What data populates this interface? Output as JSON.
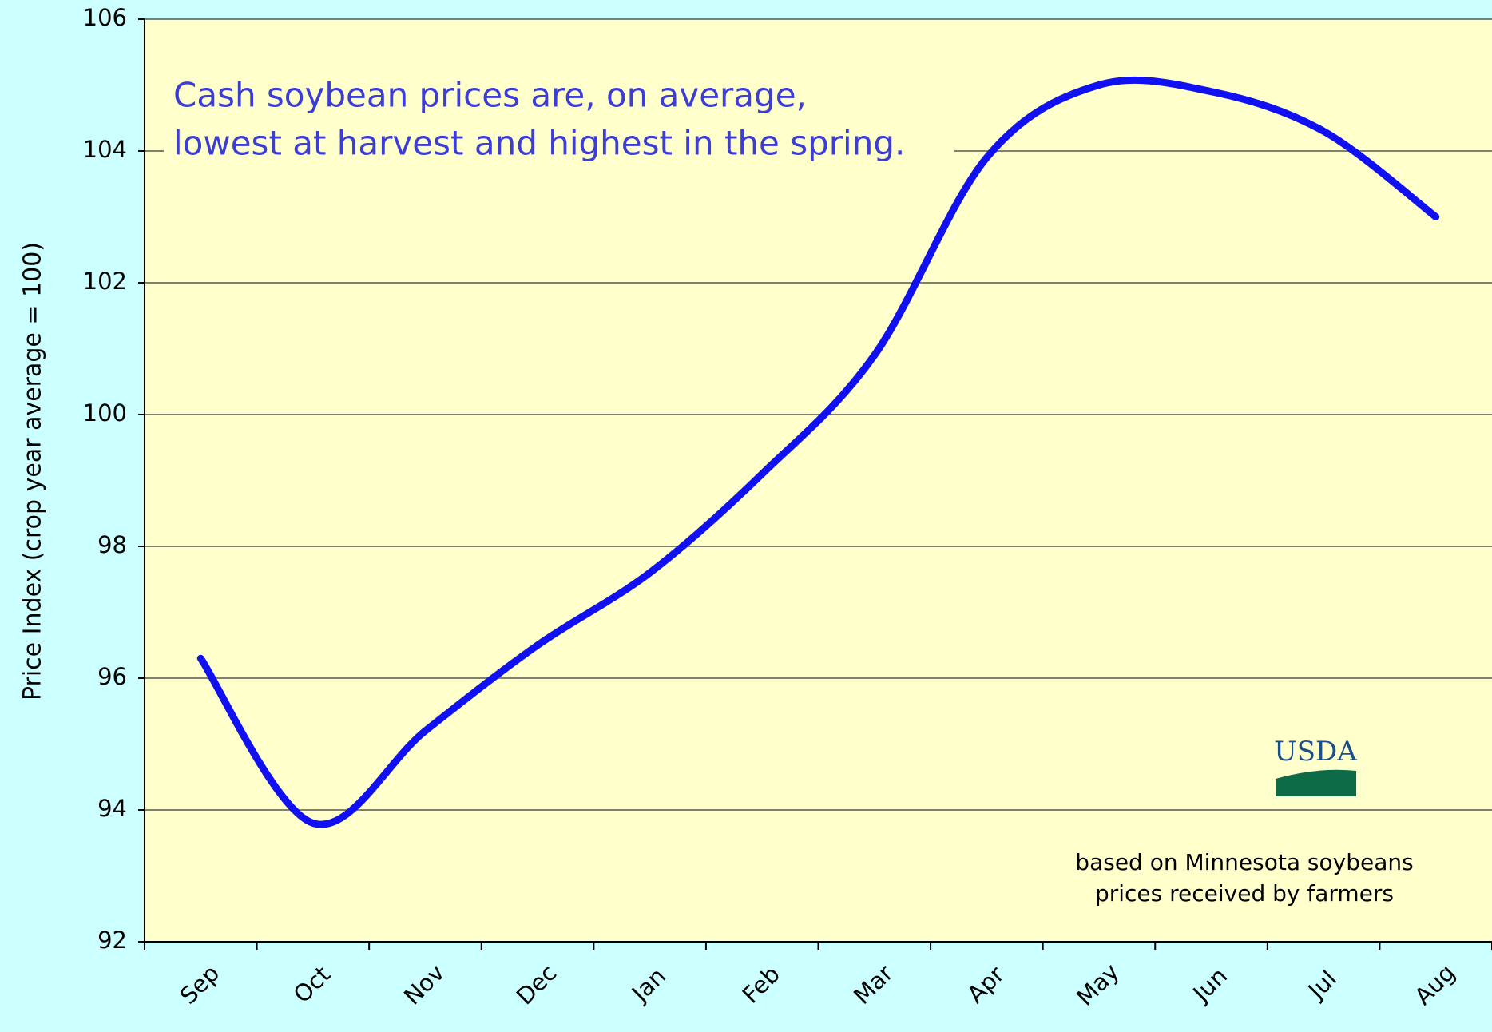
{
  "chart_data": {
    "type": "line",
    "ylabel": "Price Index (crop year average = 100)",
    "annotation": [
      "Cash soybean prices are, on average,",
      "lowest at harvest and highest in the spring."
    ],
    "note": [
      "based on Minnesota soybeans",
      "prices received by farmers"
    ],
    "logo": "USDA",
    "categories": [
      "Sep",
      "Oct",
      "Nov",
      "Dec",
      "Jan",
      "Feb",
      "Mar",
      "Apr",
      "May",
      "Jun",
      "Jul",
      "Aug"
    ],
    "series": [
      {
        "name": "Price Index",
        "color": "#1010f0",
        "values": [
          96.3,
          93.8,
          95.2,
          96.5,
          97.6,
          99.1,
          100.9,
          103.9,
          105.0,
          104.9,
          104.3,
          103.0
        ]
      }
    ],
    "ylim": [
      92,
      106
    ],
    "yticks": [
      92,
      94,
      96,
      98,
      100,
      102,
      104,
      106
    ],
    "grid": true
  }
}
